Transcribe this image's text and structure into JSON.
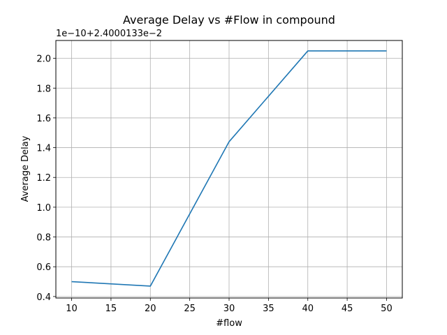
{
  "chart_data": {
    "type": "line",
    "title": "Average Delay vs #Flow in compound",
    "xlabel": "#flow",
    "ylabel": "Average Delay",
    "offset_text": "1e−10+2.4000133e−2",
    "x": [
      10,
      20,
      30,
      40,
      50
    ],
    "series": [
      {
        "values": [
          0.5,
          0.47,
          1.44,
          2.05,
          2.05
        ],
        "color": "#1f77b4"
      }
    ],
    "xlim": [
      8,
      52
    ],
    "ylim": [
      0.39,
      2.12
    ],
    "xticks": [
      10,
      15,
      20,
      25,
      30,
      35,
      40,
      45,
      50
    ],
    "yticks": [
      0.4,
      0.6,
      0.8,
      1.0,
      1.2,
      1.4,
      1.6,
      1.8,
      2.0
    ],
    "ytick_labels": [
      "0.4",
      "0.6",
      "0.8",
      "1.0",
      "1.2",
      "1.4",
      "1.6",
      "1.8",
      "2.0"
    ],
    "grid": true,
    "legend": "none"
  }
}
